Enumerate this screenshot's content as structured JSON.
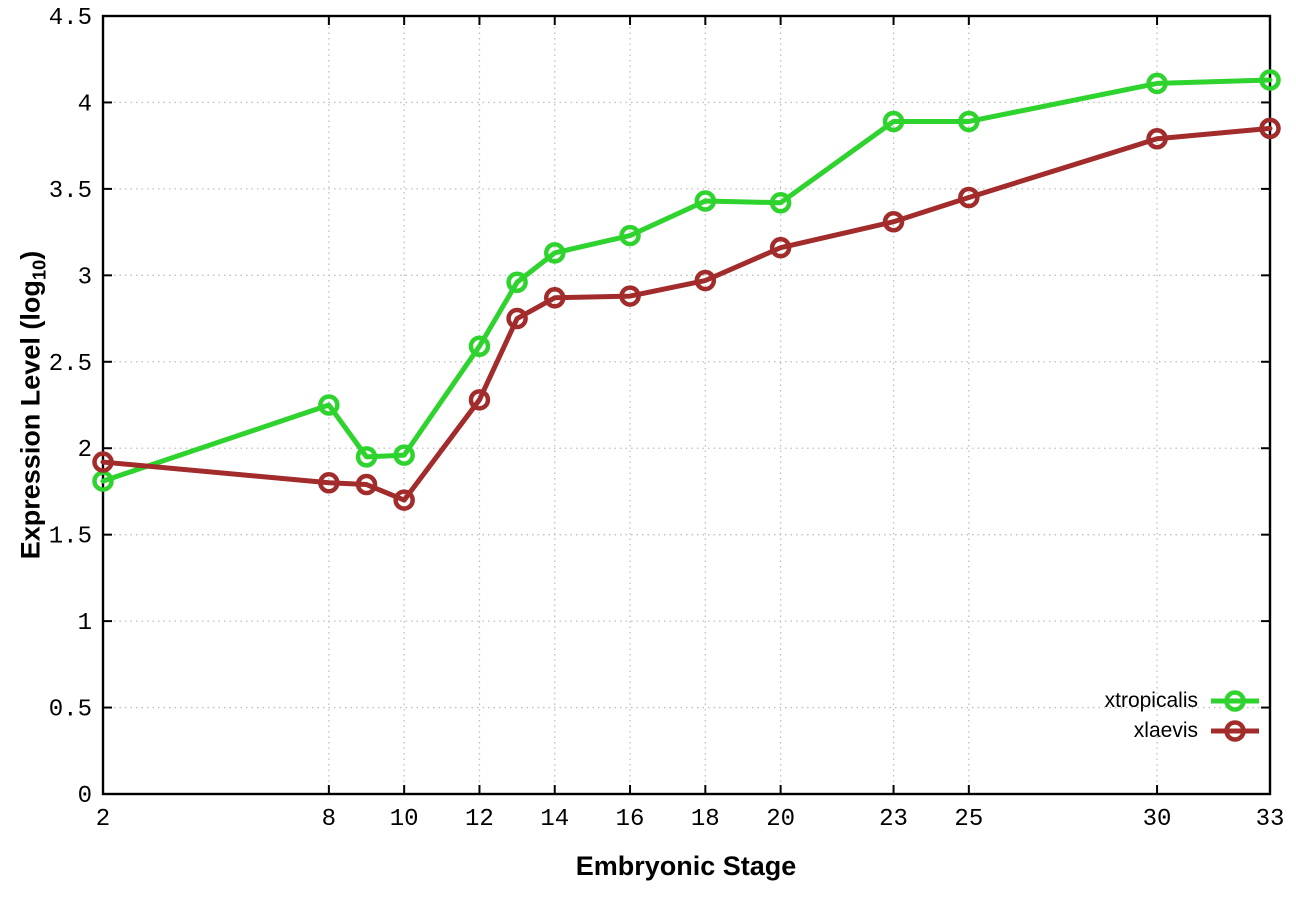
{
  "chart_data": {
    "type": "line",
    "title": "",
    "xlabel": "Embryonic Stage",
    "ylabel": "Expression Level (log10)",
    "ylabel_rich": {
      "pre": "Expression Level (log",
      "sub": "10",
      "post": ")"
    },
    "x": [
      2,
      8,
      9,
      10,
      12,
      13,
      14,
      16,
      18,
      20,
      23,
      25,
      30,
      33
    ],
    "series": [
      {
        "name": "xtropicalis",
        "color": "#2ed32e",
        "values": [
          1.81,
          2.25,
          1.95,
          1.96,
          2.59,
          2.96,
          3.13,
          3.23,
          3.43,
          3.42,
          3.89,
          3.89,
          4.11,
          4.13
        ]
      },
      {
        "name": "xlaevis",
        "color": "#a22b2b",
        "values": [
          1.92,
          1.8,
          1.79,
          1.7,
          2.28,
          2.75,
          2.87,
          2.88,
          2.97,
          3.16,
          3.31,
          3.45,
          3.79,
          3.85
        ]
      }
    ],
    "xlim": [
      2,
      33
    ],
    "ylim": [
      0,
      4.5
    ],
    "xticks": [
      2,
      8,
      10,
      12,
      14,
      16,
      18,
      20,
      23,
      25,
      30,
      33
    ],
    "xtick_labels": [
      "2",
      "8",
      "10",
      "12",
      "14",
      "16",
      "18",
      "20",
      "23",
      "25",
      "30",
      "33"
    ],
    "yticks": [
      0,
      0.5,
      1,
      1.5,
      2,
      2.5,
      3,
      3.5,
      4,
      4.5
    ],
    "ytick_labels": [
      "0",
      "0.5",
      "1",
      "1.5",
      "2",
      "2.5",
      "3",
      "3.5",
      "4",
      "4.5"
    ],
    "grid": true,
    "grid_style": "dotted",
    "legend_position": "bottom-right",
    "marker": "open-circle",
    "colors": {
      "axis": "#000000",
      "grid": "#bfbfbf",
      "tick_text": "#000000",
      "background": "#ffffff"
    }
  }
}
